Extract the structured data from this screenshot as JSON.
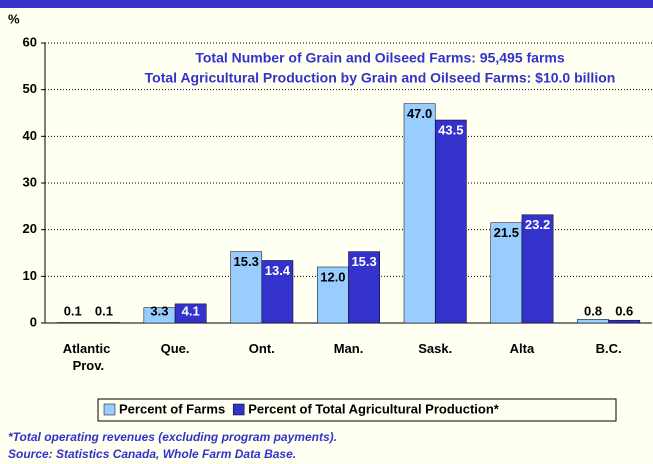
{
  "chart_data": {
    "type": "bar",
    "y_label": "%",
    "annotations": [
      "Total Number of Grain and Oilseed Farms: 95,495 farms",
      "Total Agricultural Production by Grain and Oilseed Farms: $10.0 billion"
    ],
    "categories": [
      "Atlantic Prov.",
      "Que.",
      "Ont.",
      "Man.",
      "Sask.",
      "Alta",
      "B.C."
    ],
    "series": [
      {
        "name": "Percent of Farms",
        "color": "#99ccff",
        "values": [
          0.1,
          3.3,
          15.3,
          12.0,
          47.0,
          21.5,
          0.8
        ],
        "value_labels": [
          "0.1",
          "3.3",
          "15.3",
          "12.0",
          "47.0",
          "21.5",
          "0.8"
        ]
      },
      {
        "name": "Percent of Total Agricultural Production*",
        "color": "#3333cc",
        "values": [
          0.1,
          4.1,
          13.4,
          15.3,
          43.5,
          23.2,
          0.6
        ],
        "value_labels": [
          "0.1",
          "4.1",
          "13.4",
          "15.3",
          "43.5",
          "23.2",
          "0.6"
        ]
      }
    ],
    "ylim": [
      0,
      60
    ],
    "yticks": [
      0,
      10,
      20,
      30,
      40,
      50,
      60
    ],
    "grid": true,
    "footnotes": [
      "*Total operating revenues (excluding program payments).",
      "Source: Statistics Canada, Whole Farm Data Base."
    ]
  }
}
